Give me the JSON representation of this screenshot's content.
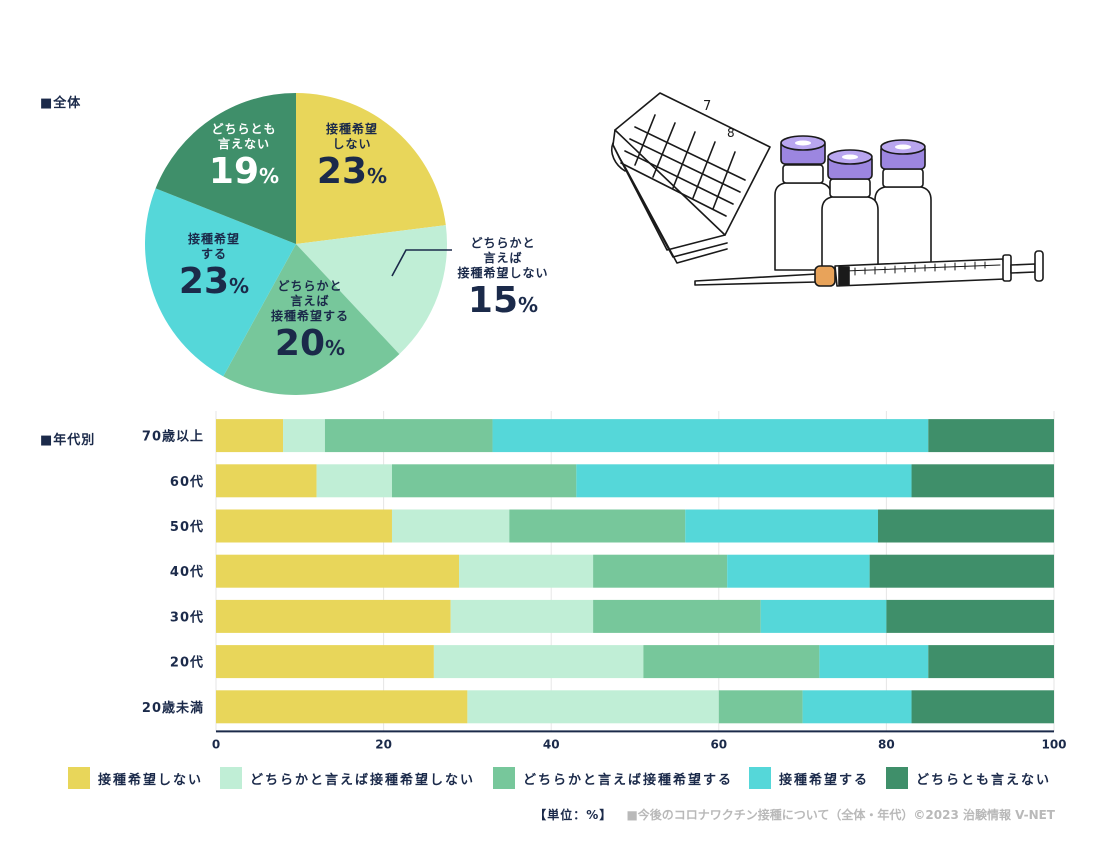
{
  "colors": {
    "not_want": "#e8d65a",
    "rather_not": "#c0eed6",
    "rather_want": "#77c79b",
    "want": "#55d7d9",
    "undecided": "#3f8f6a",
    "text": "#1b2a4a"
  },
  "sections": {
    "overall": "■全体",
    "by_age": "■年代別"
  },
  "illustration": {
    "name": "calendar-vials-syringe",
    "calendar_digits": [
      "7",
      "8"
    ]
  },
  "chart_data": [
    {
      "type": "pie",
      "title": "■全体",
      "slices": [
        {
          "key": "not_want",
          "label_lines": [
            "接種希望",
            "しない"
          ],
          "label": "接種希望しない",
          "value": 23
        },
        {
          "key": "rather_not",
          "label_lines": [
            "どちらかと",
            "言えば",
            "接種希望しない"
          ],
          "label": "どちらかと言えば接種希望しない",
          "value": 15
        },
        {
          "key": "rather_want",
          "label_lines": [
            "どちらかと",
            "言えば",
            "接種希望する"
          ],
          "label": "どちらかと言えば接種希望する",
          "value": 20
        },
        {
          "key": "want",
          "label_lines": [
            "接種希望",
            "する"
          ],
          "label": "接種希望する",
          "value": 23
        },
        {
          "key": "undecided",
          "label_lines": [
            "どちらとも",
            "言えない"
          ],
          "label": "どちらとも言えない",
          "value": 19
        }
      ],
      "unit": "%"
    },
    {
      "type": "bar",
      "orientation": "horizontal",
      "stacked": true,
      "title": "■年代別",
      "categories": [
        "70歳以上",
        "60代",
        "50代",
        "40代",
        "30代",
        "20代",
        "20歳未満"
      ],
      "series": [
        {
          "key": "not_want",
          "name": "接種希望しない",
          "values": [
            8,
            12,
            21,
            29,
            28,
            26,
            30
          ]
        },
        {
          "key": "rather_not",
          "name": "どちらかと言えば接種希望しない",
          "values": [
            5,
            9,
            14,
            16,
            17,
            25,
            30
          ]
        },
        {
          "key": "rather_want",
          "name": "どちらかと言えば接種希望する",
          "values": [
            20,
            22,
            21,
            16,
            20,
            21,
            10
          ]
        },
        {
          "key": "want",
          "name": "接種希望する",
          "values": [
            52,
            40,
            23,
            17,
            15,
            13,
            13
          ]
        },
        {
          "key": "undecided",
          "name": "どちらとも言えない",
          "values": [
            15,
            17,
            21,
            22,
            20,
            15,
            17
          ]
        }
      ],
      "xlim": [
        0,
        100
      ],
      "xticks": [
        "0",
        "20",
        "40",
        "60",
        "80",
        "100"
      ],
      "grid": true
    }
  ],
  "legend": [
    {
      "key": "not_want",
      "label": "接種希望しない"
    },
    {
      "key": "rather_not",
      "label": "どちらかと言えば接種希望しない"
    },
    {
      "key": "rather_want",
      "label": "どちらかと言えば接種希望する"
    },
    {
      "key": "want",
      "label": "接種希望する"
    },
    {
      "key": "undecided",
      "label": "どちらとも言えない"
    }
  ],
  "footer": {
    "unit": "【単位：%】",
    "credit": "■今後のコロナワクチン接種について（全体・年代）©2023 治験情報 V-NET"
  }
}
